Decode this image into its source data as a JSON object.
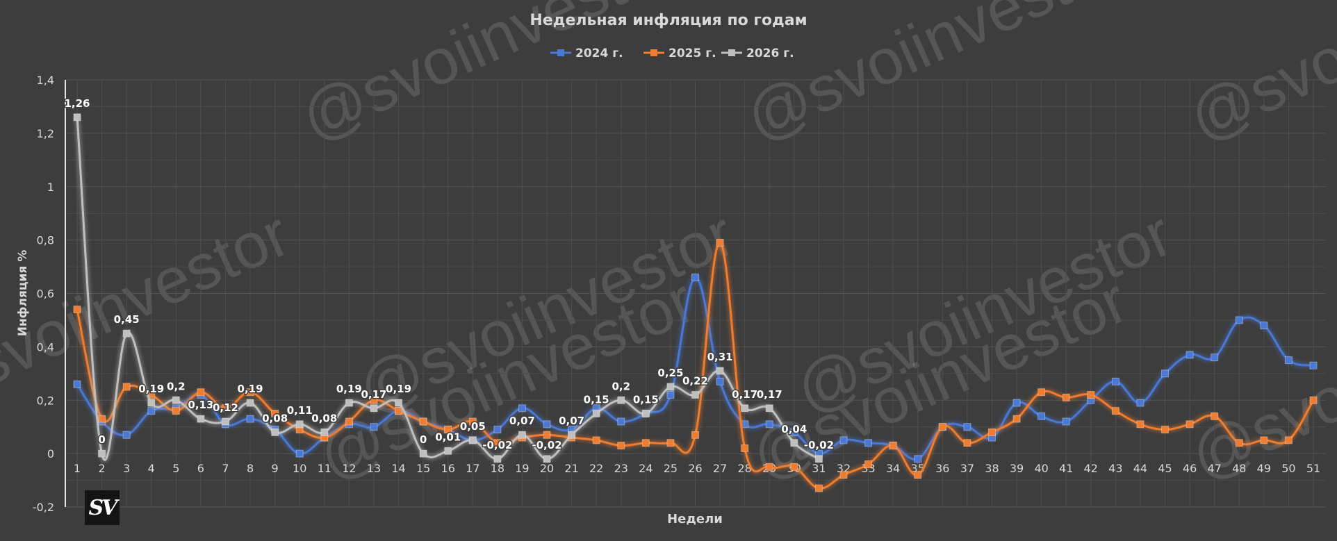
{
  "chart_data": {
    "type": "line",
    "title": "Недельная инфляция по годам",
    "xlabel": "Недели",
    "ylabel": "Инфляция %",
    "ylim": [
      -0.2,
      1.4
    ],
    "yticks": [
      "-0,2",
      "0",
      "0,2",
      "0,4",
      "0,6",
      "0,8",
      "1",
      "1,2",
      "1,4"
    ],
    "grid": true,
    "legend_position": "top-center",
    "categories": [
      "1",
      "2",
      "3",
      "4",
      "5",
      "6",
      "7",
      "8",
      "9",
      "10",
      "11",
      "12",
      "13",
      "14",
      "15",
      "16",
      "17",
      "18",
      "19",
      "20",
      "21",
      "22",
      "23",
      "24",
      "25",
      "26",
      "27",
      "28",
      "29",
      "30",
      "31",
      "32",
      "33",
      "34",
      "35",
      "36",
      "37",
      "38",
      "39",
      "40",
      "41",
      "42",
      "43",
      "44",
      "45",
      "46",
      "47",
      "48",
      "49",
      "50",
      "51"
    ],
    "series": [
      {
        "name": "2024 г.",
        "color": "#4a78d6",
        "values": [
          0.26,
          0.12,
          0.07,
          0.16,
          0.17,
          0.22,
          0.11,
          0.13,
          0.09,
          0.0,
          0.06,
          0.11,
          0.1,
          0.16,
          0.12,
          0.09,
          0.05,
          0.09,
          0.17,
          0.11,
          0.09,
          0.17,
          0.12,
          0.15,
          0.22,
          0.66,
          0.27,
          0.11,
          0.11,
          0.08,
          0.0,
          0.05,
          0.04,
          0.03,
          -0.02,
          0.1,
          0.1,
          0.06,
          0.19,
          0.14,
          0.12,
          0.2,
          0.27,
          0.19,
          0.3,
          0.37,
          0.36,
          0.5,
          0.48,
          0.35,
          0.33
        ]
      },
      {
        "name": "2025 г.",
        "color": "#f07c2f",
        "values": [
          0.54,
          0.13,
          0.25,
          0.22,
          0.16,
          0.23,
          0.17,
          0.23,
          0.15,
          0.09,
          0.06,
          0.12,
          0.2,
          0.16,
          0.12,
          0.09,
          0.12,
          0.04,
          0.06,
          0.07,
          0.06,
          0.05,
          0.03,
          0.04,
          0.04,
          0.07,
          0.79,
          0.02,
          -0.05,
          -0.05,
          -0.13,
          -0.08,
          -0.04,
          0.03,
          -0.08,
          0.1,
          0.04,
          0.08,
          0.13,
          0.23,
          0.21,
          0.22,
          0.16,
          0.11,
          0.09,
          0.11,
          0.14,
          0.04,
          0.05,
          0.05,
          0.2
        ]
      },
      {
        "name": "2026 г.",
        "color": "#bfbfbf",
        "values": [
          1.26,
          0.0,
          0.45,
          0.19,
          0.2,
          0.13,
          0.12,
          0.19,
          0.08,
          0.11,
          0.08,
          0.19,
          0.17,
          0.19,
          0.0,
          0.01,
          0.05,
          -0.02,
          0.07,
          -0.02,
          0.07,
          0.15,
          0.2,
          0.15,
          0.25,
          0.22,
          0.31,
          0.17,
          0.17,
          0.04,
          -0.02,
          null,
          null,
          null,
          null,
          null,
          null,
          null,
          null,
          null,
          null,
          null,
          null,
          null,
          null,
          null,
          null,
          null,
          null,
          null,
          null
        ],
        "data_labels": [
          "1,26",
          "0",
          "0,45",
          "0,19",
          "0,2",
          "0,13",
          "0,12",
          "0,19",
          "0,08",
          "0,11",
          "0,08",
          "0,19",
          "0,17",
          "0,19",
          "0",
          "0,01",
          "0,05",
          "-0,02",
          "0,07",
          "-0,02",
          "0,07",
          "0,15",
          "0,2",
          "0,15",
          "0,25",
          "0,22",
          "0,31",
          "0,17",
          "0,17",
          "0,04",
          "-0,02"
        ]
      }
    ]
  },
  "watermark": "@svoiinvestor",
  "logo_text": "SV"
}
